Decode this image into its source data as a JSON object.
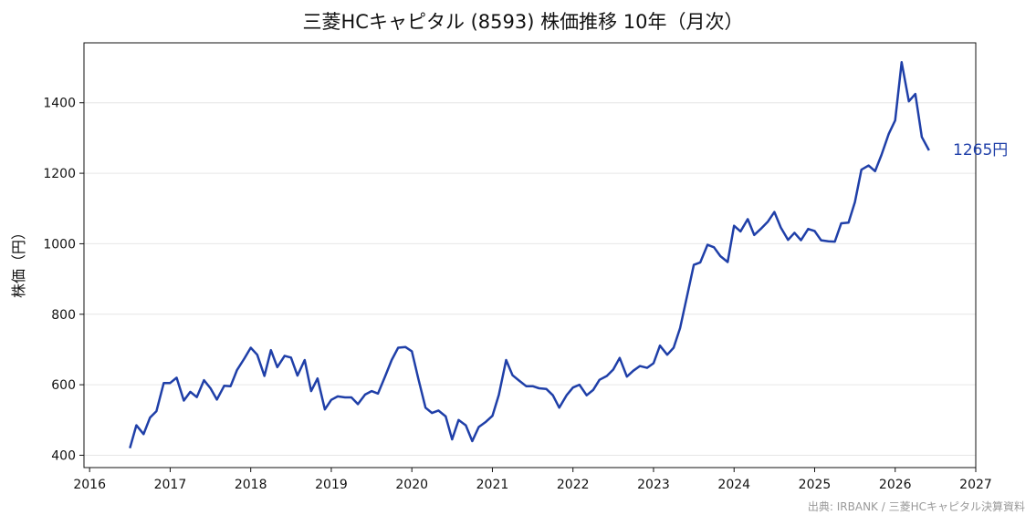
{
  "chart_data": {
    "type": "line",
    "title": "三菱HCキャピタル (8593) 株価推移 10年（月次）",
    "xlabel": "",
    "ylabel": "株価（円）",
    "xlim": [
      2015.93,
      2027.0
    ],
    "ylim": [
      365,
      1570
    ],
    "x_ticks": [
      "2016",
      "2017",
      "2018",
      "2019",
      "2020",
      "2021",
      "2022",
      "2023",
      "2024",
      "2025",
      "2026",
      "2027"
    ],
    "y_ticks": [
      "400",
      "600",
      "800",
      "1000",
      "1200",
      "1400"
    ],
    "grid": "horizontal",
    "line_color": "#1f3fa8",
    "last_label": "1265円",
    "source": "出典: IRBANK / 三菱HCキャピタル決算資料",
    "series": [
      {
        "x": [
          2016.5,
          2016.58,
          2016.67,
          2016.75,
          2016.83,
          2016.92,
          2017.0,
          2017.08,
          2017.17,
          2017.25,
          2017.33,
          2017.42,
          2017.5,
          2017.58,
          2017.67,
          2017.75,
          2017.83,
          2017.92,
          2018.0,
          2018.08,
          2018.17,
          2018.25,
          2018.33,
          2018.42,
          2018.5,
          2018.58,
          2018.67,
          2018.75,
          2018.83,
          2018.92,
          2019.0,
          2019.08,
          2019.17,
          2019.25,
          2019.33,
          2019.42,
          2019.5,
          2019.58,
          2019.67,
          2019.75,
          2019.83,
          2019.92,
          2020.0,
          2020.08,
          2020.17,
          2020.25,
          2020.33,
          2020.42,
          2020.5,
          2020.58,
          2020.67,
          2020.75,
          2020.83,
          2020.92,
          2021.0,
          2021.08,
          2021.17,
          2021.25,
          2021.33,
          2021.42,
          2021.5,
          2021.58,
          2021.67,
          2021.75,
          2021.83,
          2021.92,
          2022.0,
          2022.08,
          2022.17,
          2022.25,
          2022.33,
          2022.42,
          2022.5,
          2022.58,
          2022.67,
          2022.75,
          2022.83,
          2022.92,
          2023.0,
          2023.08,
          2023.17,
          2023.25,
          2023.33,
          2023.42,
          2023.5,
          2023.58,
          2023.67,
          2023.75,
          2023.83,
          2023.92,
          2024.0,
          2024.08,
          2024.17,
          2024.25,
          2024.33,
          2024.42,
          2024.5,
          2024.58,
          2024.67,
          2024.75,
          2024.83,
          2024.92,
          2025.0,
          2025.08,
          2025.17,
          2025.25,
          2025.33,
          2025.42,
          2025.5,
          2025.58,
          2025.67,
          2025.75,
          2025.83,
          2025.92,
          2026.0,
          2026.08,
          2026.17,
          2026.25,
          2026.33,
          2026.42
        ],
        "values": [
          420,
          485,
          460,
          507,
          525,
          605,
          605,
          620,
          555,
          580,
          565,
          613,
          590,
          558,
          597,
          596,
          642,
          674,
          705,
          685,
          625,
          698,
          650,
          682,
          677,
          626,
          670,
          582,
          618,
          530,
          557,
          567,
          564,
          564,
          545,
          572,
          582,
          575,
          625,
          670,
          705,
          707,
          695,
          617,
          535,
          520,
          527,
          510,
          445,
          500,
          485,
          440,
          480,
          495,
          512,
          571,
          670,
          627,
          612,
          596,
          596,
          590,
          588,
          570,
          535,
          570,
          592,
          600,
          570,
          585,
          614,
          625,
          643,
          676,
          623,
          640,
          653,
          648,
          661,
          711,
          685,
          705,
          761,
          855,
          940,
          947,
          997,
          990,
          965,
          948,
          1051,
          1035,
          1070,
          1025,
          1042,
          1063,
          1090,
          1046,
          1011,
          1031,
          1010,
          1042,
          1036,
          1010,
          1007,
          1006,
          1058,
          1060,
          1118,
          1210,
          1222,
          1206,
          1252,
          1312,
          1350,
          1515,
          1404,
          1425,
          1303,
          1265
        ]
      }
    ]
  }
}
